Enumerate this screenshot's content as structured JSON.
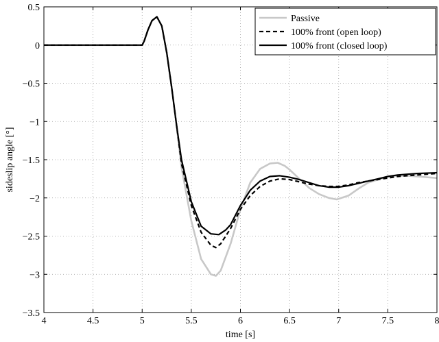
{
  "chart_data": {
    "type": "line",
    "xlabel": "time [s]",
    "ylabel": "sideslip angle [°]",
    "xlim": [
      4,
      8
    ],
    "ylim": [
      -3.5,
      0.5
    ],
    "grid": true,
    "legend_position": "top-right",
    "x_ticks": [
      "4",
      "4.5",
      "5",
      "5.5",
      "6",
      "6.5",
      "7",
      "7.5",
      "8"
    ],
    "y_ticks": [
      "0.5",
      "0",
      "−0.5",
      "−1",
      "−1.5",
      "−2",
      "−2.5",
      "−3",
      "−3.5"
    ],
    "series": [
      {
        "name": "Passive",
        "color": "#c8c8c8",
        "dash": "solid",
        "x": [
          4.0,
          5.0,
          5.02,
          5.06,
          5.1,
          5.15,
          5.2,
          5.25,
          5.3,
          5.35,
          5.4,
          5.5,
          5.6,
          5.7,
          5.75,
          5.8,
          5.9,
          6.0,
          6.1,
          6.2,
          6.3,
          6.38,
          6.45,
          6.5,
          6.6,
          6.7,
          6.8,
          6.9,
          6.98,
          7.1,
          7.2,
          7.3,
          7.4,
          7.5,
          7.6,
          7.7,
          7.8,
          8.0
        ],
        "y": [
          0.0,
          0.0,
          0.05,
          0.2,
          0.32,
          0.37,
          0.25,
          -0.1,
          -0.55,
          -1.05,
          -1.6,
          -2.3,
          -2.8,
          -3.0,
          -3.02,
          -2.95,
          -2.6,
          -2.15,
          -1.8,
          -1.62,
          -1.55,
          -1.54,
          -1.58,
          -1.63,
          -1.75,
          -1.87,
          -1.95,
          -2.0,
          -2.02,
          -1.97,
          -1.88,
          -1.8,
          -1.76,
          -1.72,
          -1.71,
          -1.71,
          -1.72,
          -1.74
        ]
      },
      {
        "name": "100% front (open loop)",
        "color": "#000000",
        "dash": "dashed",
        "x": [
          4.0,
          5.0,
          5.02,
          5.06,
          5.1,
          5.15,
          5.2,
          5.25,
          5.3,
          5.35,
          5.4,
          5.5,
          5.6,
          5.7,
          5.75,
          5.8,
          5.9,
          6.0,
          6.1,
          6.2,
          6.3,
          6.4,
          6.5,
          6.6,
          6.7,
          6.8,
          6.9,
          7.0,
          7.1,
          7.2,
          7.3,
          7.4,
          7.5,
          7.6,
          7.7,
          7.8,
          8.0
        ],
        "y": [
          0.0,
          0.0,
          0.05,
          0.2,
          0.32,
          0.37,
          0.25,
          -0.1,
          -0.55,
          -1.05,
          -1.55,
          -2.1,
          -2.45,
          -2.62,
          -2.65,
          -2.6,
          -2.4,
          -2.15,
          -1.97,
          -1.85,
          -1.78,
          -1.75,
          -1.76,
          -1.79,
          -1.82,
          -1.84,
          -1.85,
          -1.85,
          -1.83,
          -1.8,
          -1.78,
          -1.76,
          -1.74,
          -1.72,
          -1.71,
          -1.7,
          -1.68
        ]
      },
      {
        "name": "100% front (closed loop)",
        "color": "#000000",
        "dash": "solid",
        "x": [
          4.0,
          5.0,
          5.02,
          5.06,
          5.1,
          5.15,
          5.2,
          5.25,
          5.3,
          5.35,
          5.4,
          5.5,
          5.6,
          5.7,
          5.78,
          5.85,
          5.9,
          6.0,
          6.1,
          6.2,
          6.3,
          6.4,
          6.5,
          6.6,
          6.7,
          6.8,
          6.9,
          7.0,
          7.1,
          7.2,
          7.3,
          7.4,
          7.5,
          7.6,
          7.7,
          7.8,
          8.0
        ],
        "y": [
          0.0,
          0.0,
          0.05,
          0.2,
          0.32,
          0.37,
          0.25,
          -0.1,
          -0.55,
          -1.05,
          -1.5,
          -2.05,
          -2.37,
          -2.47,
          -2.48,
          -2.42,
          -2.35,
          -2.1,
          -1.9,
          -1.78,
          -1.72,
          -1.71,
          -1.73,
          -1.76,
          -1.8,
          -1.84,
          -1.86,
          -1.86,
          -1.84,
          -1.81,
          -1.78,
          -1.75,
          -1.72,
          -1.7,
          -1.69,
          -1.68,
          -1.67
        ]
      }
    ]
  }
}
